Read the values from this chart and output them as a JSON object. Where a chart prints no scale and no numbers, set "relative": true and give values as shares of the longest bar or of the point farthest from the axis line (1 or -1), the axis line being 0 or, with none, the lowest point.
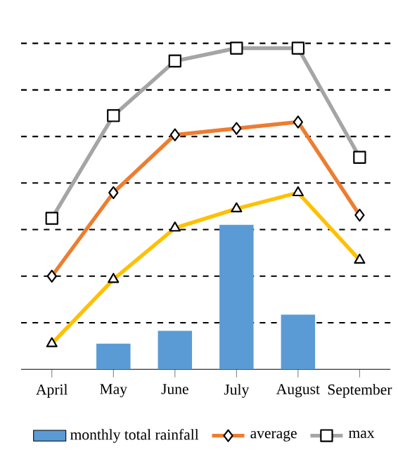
{
  "chart_data": {
    "type": "line",
    "relative": true,
    "grid": "y",
    "legend": "bottom",
    "categories": [
      "April",
      "May",
      "June",
      "July",
      "August",
      "September"
    ],
    "series": [
      {
        "name": "monthly total rainfall",
        "type": "bar",
        "color": "#5b9bd5",
        "values": [
          null,
          0.08,
          0.12,
          0.45,
          0.17,
          null
        ]
      },
      {
        "name": "average",
        "marker": "diamond",
        "color": "#ed7d31",
        "values": [
          0.29,
          0.55,
          0.73,
          0.75,
          0.77,
          0.48
        ]
      },
      {
        "name": "max",
        "marker": "square",
        "color": "#a5a5a5",
        "values": [
          0.47,
          0.79,
          0.96,
          1.0,
          1.0,
          0.66
        ]
      },
      {
        "marker": "triangle",
        "color": "#ffc000",
        "values": [
          0.08,
          0.28,
          0.44,
          0.5,
          0.55,
          0.34
        ]
      }
    ]
  }
}
